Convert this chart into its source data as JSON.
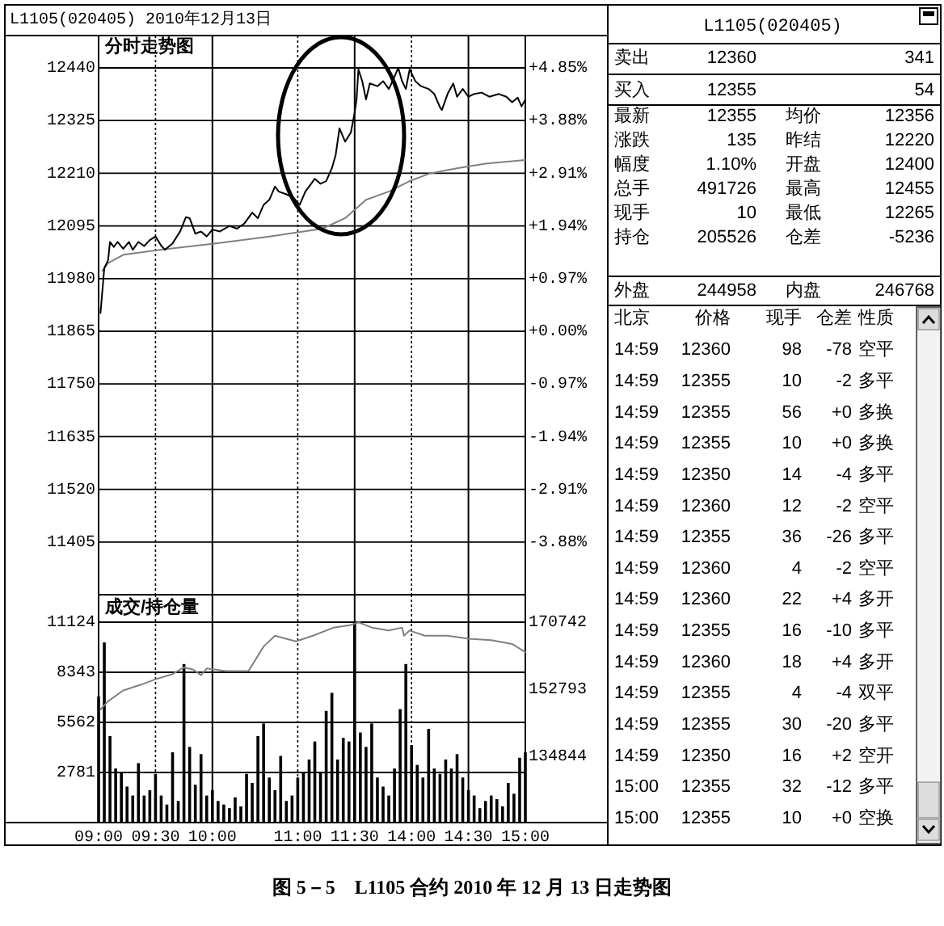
{
  "chart_data": [
    {
      "type": "line",
      "title": "L1105(020405) 2010年12月13日",
      "subtitle": "分时走势图",
      "annotations": [
        "图 5－5　L1105 合约 2010 年 12 月 13 日走势图"
      ],
      "categories": [
        null,
        null,
        null,
        null,
        null,
        null,
        null,
        null,
        null,
        null,
        null,
        null,
        null,
        null,
        null,
        null,
        null,
        null,
        null,
        null,
        null,
        null,
        null,
        null,
        null,
        null,
        null,
        null,
        null,
        null,
        null,
        null,
        null,
        null,
        null,
        null,
        null,
        null,
        null,
        null,
        null,
        null,
        null,
        null,
        null,
        null,
        null,
        null,
        null,
        null,
        null,
        null,
        null,
        null,
        null,
        null,
        null,
        null,
        null,
        null,
        null,
        null,
        null,
        null,
        null,
        null,
        null,
        null,
        null,
        null,
        null,
        null,
        null,
        null,
        null,
        null,
        null,
        null,
        null,
        null,
        null,
        null,
        null,
        null,
        null,
        null,
        null,
        null,
        null,
        null,
        null,
        null,
        null,
        null,
        null,
        null,
        null,
        null,
        null,
        null,
        null,
        null,
        null,
        null,
        null,
        null,
        null,
        null,
        null,
        null,
        null,
        null,
        null,
        null,
        null,
        null,
        null,
        null,
        null,
        null,
        null,
        null,
        null,
        null,
        null,
        null,
        null,
        null,
        null,
        null,
        null,
        null,
        null,
        null,
        null,
        null,
        null,
        null,
        null,
        null,
        null,
        null,
        null,
        null,
        null,
        null,
        null,
        null,
        null,
        null,
        null,
        null,
        null,
        null,
        null,
        null,
        null,
        null,
        null,
        null,
        null,
        null,
        null,
        null,
        null,
        null,
        null,
        null,
        null,
        null,
        null,
        null,
        null,
        null,
        null,
        null,
        null,
        null,
        null,
        null,
        null,
        null,
        null,
        null,
        null,
        null,
        null,
        null,
        null,
        null,
        null,
        null,
        null,
        null,
        null,
        null,
        null,
        null,
        null,
        null,
        null,
        null,
        null,
        null,
        null,
        null,
        null,
        null,
        null,
        null,
        null,
        null,
        null,
        null,
        null,
        null,
        null,
        null,
        null,
        null,
        null,
        null,
        null,
        null,
        null,
        null
      ],
      "tick_labels": "y",
      "ylim": [
        11290,
        12440
      ],
      "yticks": [
        11405,
        11520,
        11635,
        11750,
        11865,
        11980,
        12095,
        12210,
        12325,
        12440
      ],
      "y2lim": [
        -4.85,
        4.85
      ],
      "y2ticks": [
        {
          "value": -3.88,
          "label": "-3.88%"
        },
        {
          "value": -2.91,
          "label": "-2.91%"
        },
        {
          "value": -1.94,
          "label": "-1.94%"
        },
        {
          "value": -0.97,
          "label": "-0.97%"
        },
        {
          "value": 0,
          "label": "+0.00%"
        },
        {
          "value": 0.97,
          "label": "+0.97%"
        },
        {
          "value": 1.94,
          "label": "+1.94%"
        },
        {
          "value": 2.91,
          "label": "+2.91%"
        },
        {
          "value": 3.88,
          "label": "+3.88%"
        },
        {
          "value": 4.85,
          "label": "+4.85%"
        }
      ],
      "grid": true,
      "series": [
        {
          "color": "#808080",
          "values": [
            null,
            null,
            11997,
            null,
            null,
            12014,
            null,
            null,
            null,
            null,
            null,
            null,
            null,
            12032,
            null,
            null,
            null,
            null,
            null,
            null,
            null,
            null,
            null,
            null,
            null,
            null,
            null,
            null,
            null,
            null,
            null,
            null,
            null,
            12043,
            null,
            null,
            null,
            null,
            null,
            null,
            null,
            null,
            null,
            null,
            null,
            null,
            null,
            null,
            null,
            null,
            null,
            null,
            null,
            null,
            null,
            null,
            null,
            null,
            null,
            null,
            null,
            null,
            12057,
            null,
            null,
            null,
            null,
            null,
            null,
            null,
            null,
            null,
            null,
            null,
            null,
            null,
            null,
            null,
            null,
            null,
            null,
            null,
            null,
            null,
            null,
            null,
            null,
            null,
            null,
            null,
            12072,
            null,
            null,
            null,
            null,
            null,
            null,
            null,
            null,
            null,
            null,
            null,
            null,
            null,
            null,
            null,
            null,
            null,
            null,
            null,
            null,
            null,
            null,
            null,
            null,
            null,
            null,
            null,
            12089,
            null,
            null,
            null,
            null,
            null,
            null,
            null,
            null,
            null,
            null,
            null,
            12112,
            null,
            null,
            null,
            null,
            null,
            null,
            null,
            null,
            null,
            null,
            12152,
            null,
            null,
            null,
            null,
            null,
            null,
            null,
            null,
            null,
            null,
            null,
            12170,
            null,
            null,
            null,
            null,
            null,
            null,
            null,
            null,
            null,
            null,
            12193,
            null,
            null,
            null,
            null,
            null,
            null,
            null,
            null,
            null,
            null,
            12210,
            null,
            null,
            null,
            null,
            null,
            null,
            null,
            null,
            null,
            null,
            null,
            null,
            null,
            12221,
            null,
            null,
            null,
            null,
            null,
            null,
            null,
            null,
            null,
            null,
            null,
            null,
            null,
            null,
            12231,
            null,
            null,
            null,
            null,
            null,
            null,
            null,
            null,
            null,
            null,
            null,
            null,
            null,
            null,
            null,
            null,
            null,
            null,
            null,
            null,
            12239
          ]
        },
        {
          "color": "#000000",
          "values": [
            null,
            11905,
            null,
            12003,
            null,
            12020,
            12060,
            null,
            12049,
            null,
            12060,
            null,
            null,
            12045,
            null,
            null,
            12060,
            null,
            12043,
            null,
            null,
            12060,
            null,
            null,
            12051,
            null,
            null,
            12064,
            null,
            null,
            12072,
            null,
            null,
            12052,
            null,
            12043,
            null,
            null,
            null,
            12057,
            null,
            null,
            null,
            12083,
            null,
            null,
            12114,
            null,
            12112,
            null,
            null,
            12078,
            null,
            null,
            12083,
            null,
            null,
            12072,
            null,
            null,
            12087,
            null,
            null,
            null,
            12083,
            null,
            null,
            null,
            null,
            12095,
            null,
            null,
            null,
            12089,
            null,
            null,
            null,
            12101,
            null,
            null,
            null,
            12124,
            null,
            null,
            12112,
            null,
            null,
            12141,
            null,
            null,
            12152,
            null,
            null,
            12181,
            null,
            12170,
            null,
            null,
            null,
            12164,
            null,
            null,
            null,
            12156,
            null,
            null,
            12141,
            null,
            null,
            12170,
            null,
            12181,
            null,
            null,
            12198,
            null,
            null,
            12187,
            null,
            null,
            12193,
            null,
            null,
            12221,
            null,
            12250,
            null,
            12308,
            null,
            null,
            12279,
            null,
            null,
            12299,
            null,
            12342,
            12371,
            12437,
            null,
            12411,
            null,
            12371,
            null,
            12406,
            null,
            null,
            null,
            12400,
            null,
            null,
            12411,
            null,
            null,
            12394,
            null,
            12411,
            null,
            null,
            12440,
            null,
            12411,
            null,
            12394,
            null,
            12437,
            null,
            null,
            12411,
            null,
            null,
            12400,
            null,
            null,
            null,
            12394,
            null,
            null,
            12383,
            null,
            null,
            12354,
            12348,
            null,
            null,
            12383,
            null,
            null,
            12406,
            null,
            12377,
            null,
            null,
            12394,
            null,
            null,
            12377,
            null,
            null,
            12383,
            null,
            null,
            null,
            12386,
            null,
            null,
            null,
            12377,
            null,
            null,
            null,
            null,
            12383,
            null,
            null,
            null,
            12377,
            null,
            null,
            12365,
            null,
            null,
            12375,
            null,
            12356,
            null,
            12371
          ]
        }
      ]
    },
    {
      "type": "bar",
      "title": "成交/持仓量",
      "categories": [
        "09:00",
        null,
        null,
        null,
        null,
        null,
        null,
        null,
        null,
        null,
        null,
        null,
        null,
        null,
        null,
        null,
        null,
        null,
        null,
        null,
        null,
        null,
        null,
        null,
        null,
        null,
        null,
        null,
        null,
        null,
        "09:30",
        null,
        null,
        null,
        null,
        null,
        null,
        null,
        null,
        null,
        null,
        null,
        null,
        null,
        null,
        null,
        null,
        null,
        null,
        null,
        null,
        null,
        null,
        null,
        null,
        null,
        null,
        null,
        null,
        null,
        "10:00",
        null,
        null,
        null,
        null,
        null,
        null,
        null,
        null,
        null,
        null,
        null,
        null,
        null,
        null,
        null,
        null,
        null,
        null,
        null,
        null,
        null,
        null,
        null,
        null,
        null,
        null,
        null,
        null,
        null,
        null,
        null,
        null,
        null,
        null,
        null,
        null,
        null,
        null,
        null,
        null,
        null,
        null,
        null,
        null,
        "11:00",
        null,
        null,
        null,
        null,
        null,
        null,
        null,
        null,
        null,
        null,
        null,
        null,
        null,
        null,
        null,
        null,
        null,
        null,
        null,
        null,
        null,
        null,
        null,
        null,
        null,
        null,
        null,
        null,
        null,
        "11:30",
        null,
        null,
        null,
        null,
        null,
        null,
        null,
        null,
        null,
        null,
        null,
        null,
        null,
        null,
        null,
        null,
        null,
        null,
        null,
        null,
        null,
        null,
        null,
        null,
        null,
        null,
        null,
        null,
        null,
        "14:00",
        null,
        null,
        null,
        null,
        null,
        null,
        null,
        null,
        null,
        null,
        null,
        null,
        null,
        null,
        null,
        null,
        null,
        null,
        null,
        null,
        null,
        null,
        null,
        null,
        null,
        null,
        null,
        null,
        null,
        "14:30",
        null,
        null,
        null,
        null,
        null,
        null,
        null,
        null,
        null,
        null,
        null,
        null,
        null,
        null,
        null,
        null,
        null,
        null,
        null,
        null,
        null,
        null,
        null,
        null,
        null,
        null,
        null,
        null,
        null,
        "15:00"
      ],
      "ylim": [
        0,
        11124
      ],
      "yticks": [
        2781,
        5562,
        8343,
        11124
      ],
      "y2lim": [
        116895,
        170742
      ],
      "y2ticks": [
        134844,
        152793,
        170742
      ],
      "grid": true,
      "series": [
        {
          "type": "bar",
          "color": "#000000",
          "values": [
            7000,
            null,
            null,
            10000,
            null,
            null,
            4800,
            null,
            null,
            3000,
            null,
            null,
            2800,
            null,
            null,
            2000,
            null,
            null,
            1500,
            null,
            null,
            3300,
            null,
            null,
            1500,
            null,
            null,
            1800,
            null,
            null,
            2700,
            null,
            null,
            1500,
            null,
            null,
            1000,
            null,
            null,
            3900,
            null,
            null,
            1200,
            null,
            null,
            8800,
            null,
            null,
            4200,
            null,
            null,
            2100,
            null,
            null,
            3800,
            null,
            null,
            1500,
            null,
            null,
            1800,
            null,
            null,
            1200,
            null,
            null,
            1000,
            null,
            null,
            800,
            null,
            null,
            1400,
            null,
            null,
            900,
            null,
            null,
            2700,
            null,
            null,
            2200,
            null,
            null,
            4800,
            null,
            null,
            5500,
            null,
            null,
            2500,
            null,
            null,
            1800,
            null,
            null,
            3700,
            null,
            null,
            1200,
            null,
            null,
            1500,
            null,
            null,
            2500,
            null,
            null,
            2800,
            null,
            null,
            3500,
            null,
            null,
            4500,
            null,
            null,
            2800,
            null,
            null,
            6200,
            null,
            null,
            7200,
            null,
            null,
            3500,
            null,
            null,
            4700,
            null,
            null,
            4500,
            null,
            null,
            11100,
            null,
            null,
            5000,
            null,
            null,
            4200,
            null,
            null,
            5500,
            null,
            null,
            2500,
            null,
            null,
            2000,
            null,
            null,
            1500,
            null,
            null,
            3000,
            null,
            null,
            6300,
            null,
            null,
            8800,
            null,
            null,
            4300,
            null,
            null,
            3200,
            null,
            null,
            2500,
            null,
            null,
            5200,
            null,
            null,
            3000,
            null,
            null,
            2700,
            null,
            null,
            3500,
            null,
            null,
            3000,
            null,
            null,
            3800,
            null,
            null,
            2500,
            null,
            null,
            1800,
            null,
            null,
            1500,
            null,
            null,
            800,
            null,
            null,
            1200,
            null,
            null,
            1500,
            null,
            null,
            1300,
            null,
            null,
            900,
            null,
            null,
            2200,
            null,
            null,
            1600,
            null,
            null,
            3600,
            null,
            null,
            3900
          ]
        },
        {
          "type": "line",
          "axis": "y2",
          "color": "#808080",
          "values": [
            null,
            147300,
            null,
            null,
            null,
            149500,
            null,
            null,
            null,
            null,
            null,
            null,
            null,
            152400,
            null,
            null,
            null,
            null,
            null,
            null,
            null,
            null,
            153900,
            null,
            null,
            null,
            null,
            null,
            null,
            null,
            155400,
            null,
            null,
            null,
            null,
            null,
            null,
            null,
            null,
            156800,
            null,
            null,
            null,
            null,
            null,
            158600,
            null,
            null,
            null,
            null,
            158000,
            null,
            null,
            null,
            156500,
            null,
            null,
            158300,
            null,
            null,
            null,
            null,
            null,
            null,
            null,
            null,
            null,
            157600,
            null,
            null,
            null,
            null,
            null,
            null,
            null,
            null,
            null,
            null,
            null,
            157600,
            null,
            null,
            null,
            null,
            null,
            null,
            null,
            164200,
            null,
            null,
            null,
            null,
            null,
            167100,
            null,
            null,
            null,
            null,
            null,
            null,
            null,
            null,
            null,
            null,
            165600,
            null,
            null,
            null,
            null,
            null,
            null,
            null,
            null,
            167100,
            null,
            null,
            null,
            null,
            null,
            null,
            null,
            null,
            null,
            null,
            169300,
            null,
            null,
            null,
            null,
            null,
            null,
            null,
            null,
            170000,
            null,
            null,
            null,
            170700,
            null,
            null,
            null,
            null,
            null,
            null,
            169300,
            null,
            null,
            null,
            null,
            null,
            null,
            null,
            null,
            168500,
            null,
            null,
            null,
            null,
            null,
            null,
            169300,
            167100,
            null,
            null,
            168500,
            null,
            null,
            null,
            null,
            null,
            null,
            null,
            167100,
            null,
            null,
            null,
            null,
            null,
            null,
            null,
            null,
            null,
            null,
            null,
            167100,
            null,
            null,
            null,
            null,
            null,
            null,
            null,
            null,
            null,
            null,
            166300,
            null,
            null,
            null,
            null,
            null,
            null,
            null,
            null,
            null,
            null,
            null,
            165900,
            null,
            null,
            null,
            null,
            null,
            null,
            null,
            null,
            null,
            null,
            164900,
            null,
            null,
            null,
            null,
            null,
            null,
            162700
          ]
        }
      ]
    },
    {
      "type": "other",
      "title": "L1105(020405)",
      "annotations": [
        "卖出",
        "12360",
        "341",
        "买入",
        "12355",
        "54",
        "最新",
        "12355",
        "均价",
        "12356",
        "涨跌",
        "135",
        "昨结",
        "12220",
        "幅度",
        "1.10%",
        "开盘",
        "12400",
        "总手",
        "491726",
        "最高",
        "12455",
        "现手",
        "10",
        "最低",
        "12265",
        "持仓",
        "205526",
        "仓差",
        "-5236",
        "外盘",
        "244958",
        "内盘",
        "246768",
        "北京",
        "价格",
        "现手",
        "仓差",
        "性质",
        "14:59",
        "12360",
        "98",
        "-78",
        "空平",
        "14:59",
        "12355",
        "10",
        "-2",
        "多平",
        "14:59",
        "12355",
        "56",
        "+0",
        "多换",
        "14:59",
        "12355",
        "10",
        "+0",
        "多换",
        "14:59",
        "12350",
        "14",
        "-4",
        "多平",
        "14:59",
        "12360",
        "12",
        "-2",
        "空平",
        "14:59",
        "12355",
        "36",
        "-26",
        "多平",
        "14:59",
        "12360",
        "4",
        "-2",
        "空平",
        "14:59",
        "12360",
        "22",
        "+4",
        "多开",
        "14:59",
        "12355",
        "16",
        "-10",
        "多平",
        "14:59",
        "12360",
        "18",
        "+4",
        "多开",
        "14:59",
        "12355",
        "4",
        "-4",
        "双平",
        "14:59",
        "12355",
        "30",
        "-20",
        "多平",
        "14:59",
        "12350",
        "16",
        "+2",
        "空开",
        "15:00",
        "12355",
        "32",
        "-12",
        "多平",
        "15:00",
        "12355",
        "10",
        "+0",
        "空换"
      ]
    }
  ]
}
